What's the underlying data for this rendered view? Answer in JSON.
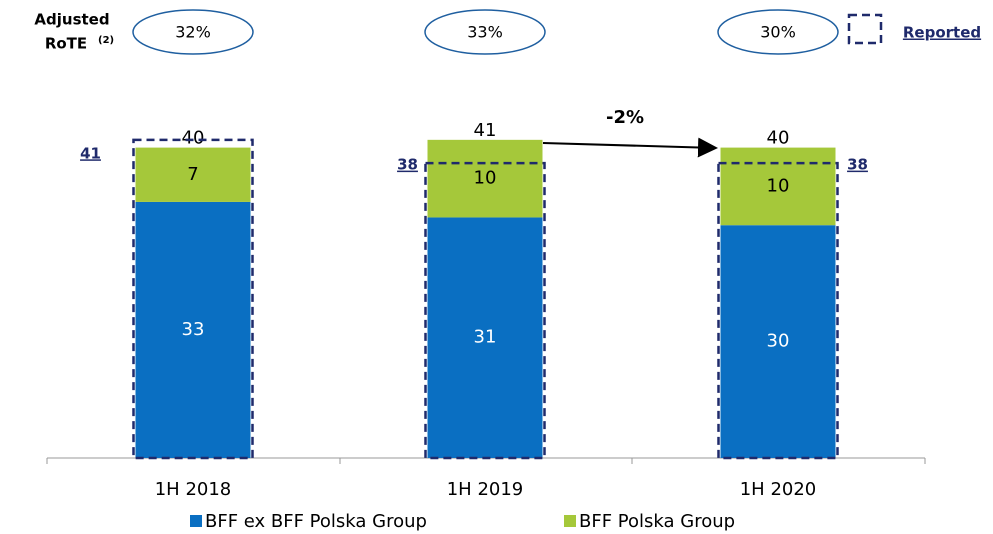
{
  "chart_data": {
    "type": "stacked_bar",
    "categories": [
      "1H 2018",
      "1H 2019",
      "1H 2020"
    ],
    "series": [
      {
        "name": "BFF ex BFF Polska Group",
        "color": "#0a6fc2",
        "values": [
          33,
          31,
          30
        ]
      },
      {
        "name": "BFF Polska Group",
        "color": "#a5c83a",
        "values": [
          7,
          10,
          10
        ]
      }
    ],
    "totals": [
      40,
      41,
      40
    ],
    "reported": [
      41,
      38,
      38
    ],
    "reported_label": "Reported",
    "rote_label": "Adjusted",
    "rote_label_2": "RoTE",
    "rote_note": "(2)",
    "rote_values": [
      32,
      33,
      30
    ],
    "rote_value_labels": [
      "32%",
      "33%",
      "30%"
    ],
    "annotation": "-2%"
  }
}
